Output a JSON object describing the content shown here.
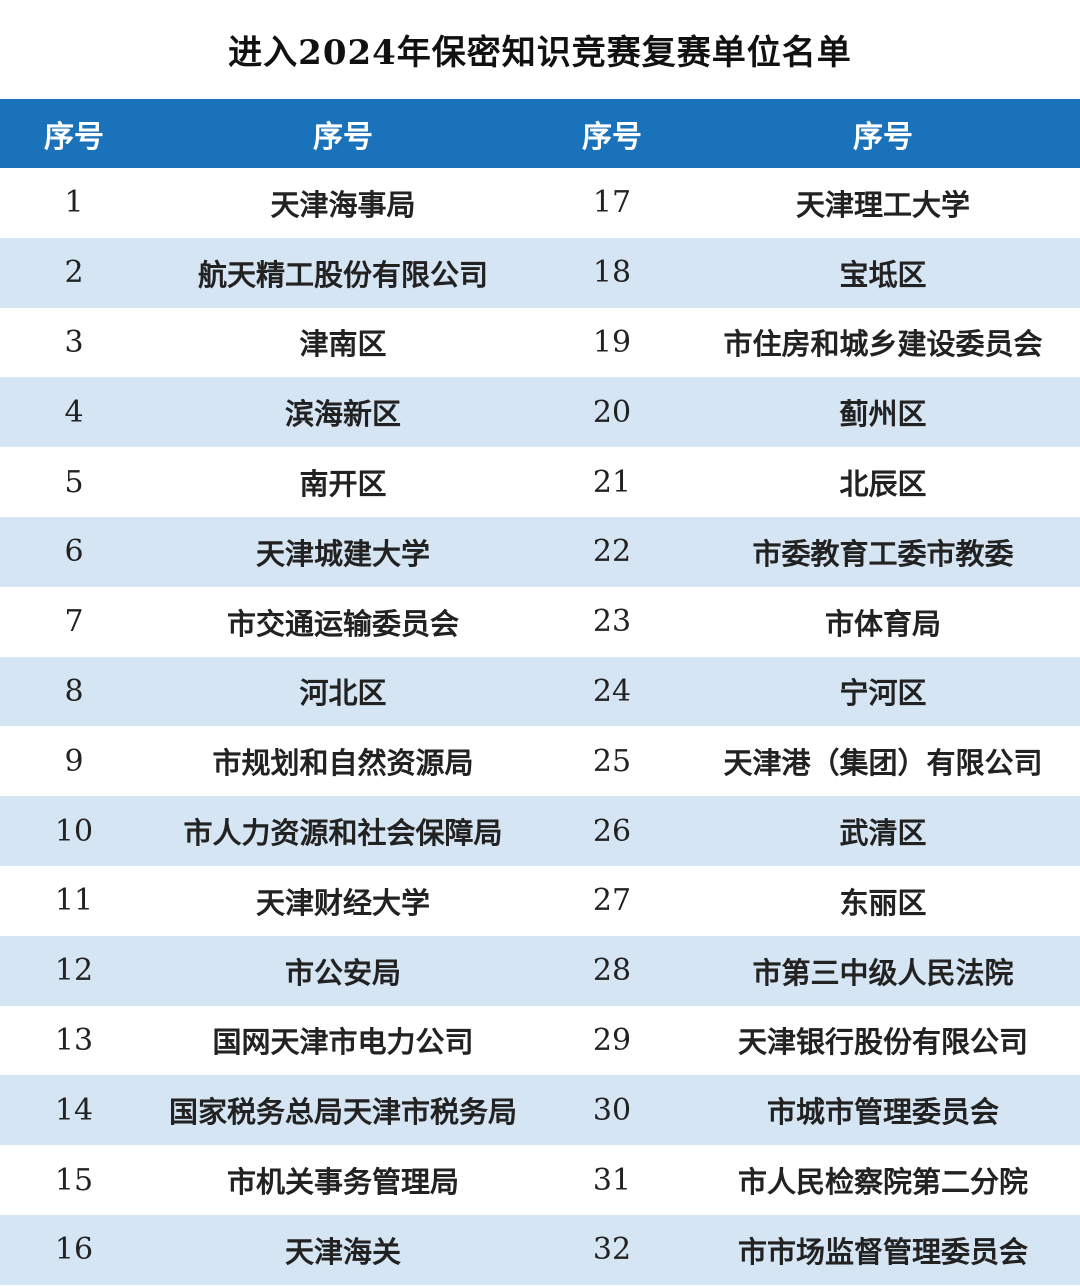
{
  "title": "进入2024年保密知识竞赛复赛单位名单",
  "headers": [
    "序号",
    "序号",
    "序号",
    "序号"
  ],
  "rows": [
    {
      "n1": "1",
      "u1": "天津海事局",
      "n2": "17",
      "u2": "天津理工大学"
    },
    {
      "n1": "2",
      "u1": "航天精工股份有限公司",
      "n2": "18",
      "u2": "宝坻区"
    },
    {
      "n1": "3",
      "u1": "津南区",
      "n2": "19",
      "u2": "市住房和城乡建设委员会"
    },
    {
      "n1": "4",
      "u1": "滨海新区",
      "n2": "20",
      "u2": "蓟州区"
    },
    {
      "n1": "5",
      "u1": "南开区",
      "n2": "21",
      "u2": "北辰区"
    },
    {
      "n1": "6",
      "u1": "天津城建大学",
      "n2": "22",
      "u2": "市委教育工委市教委"
    },
    {
      "n1": "7",
      "u1": "市交通运输委员会",
      "n2": "23",
      "u2": "市体育局"
    },
    {
      "n1": "8",
      "u1": "河北区",
      "n2": "24",
      "u2": "宁河区"
    },
    {
      "n1": "9",
      "u1": "市规划和自然资源局",
      "n2": "25",
      "u2": "天津港（集团）有限公司"
    },
    {
      "n1": "10",
      "u1": "市人力资源和社会保障局",
      "n2": "26",
      "u2": "武清区"
    },
    {
      "n1": "11",
      "u1": "天津财经大学",
      "n2": "27",
      "u2": "东丽区"
    },
    {
      "n1": "12",
      "u1": "市公安局",
      "n2": "28",
      "u2": "市第三中级人民法院"
    },
    {
      "n1": "13",
      "u1": "国网天津市电力公司",
      "n2": "29",
      "u2": "天津银行股份有限公司"
    },
    {
      "n1": "14",
      "u1": "国家税务总局天津市税务局",
      "n2": "30",
      "u2": "市城市管理委员会"
    },
    {
      "n1": "15",
      "u1": "市机关事务管理局",
      "n2": "31",
      "u2": "市人民检察院第二分院"
    },
    {
      "n1": "16",
      "u1": "天津海关",
      "n2": "32",
      "u2": "市市场监督管理委员会"
    }
  ],
  "colors": {
    "header_bg": "#1a72bb",
    "stripe": "#d6e5f3"
  }
}
